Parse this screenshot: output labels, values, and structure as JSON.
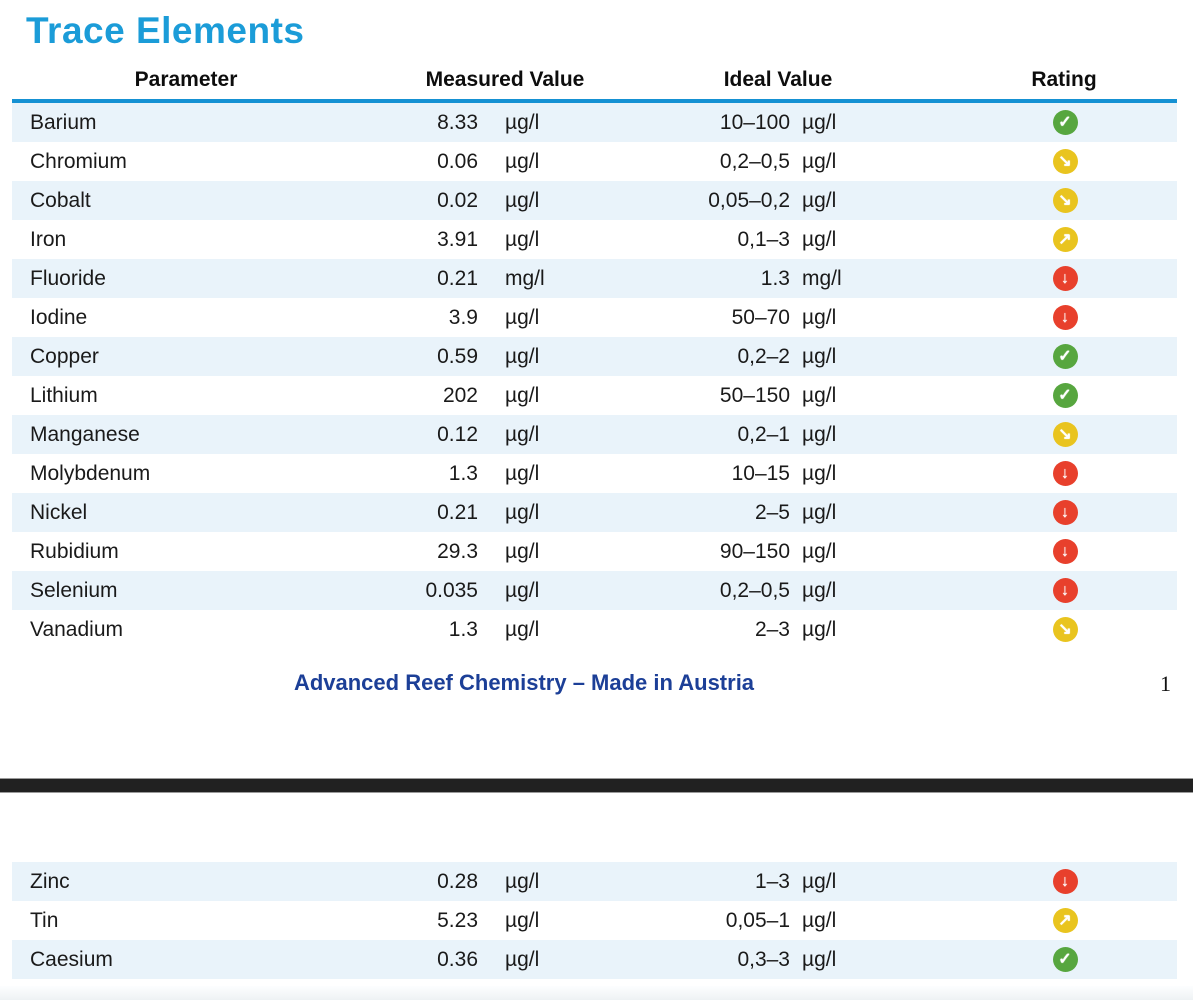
{
  "page": {
    "title": "Trace Elements",
    "footer": {
      "brand": "Advanced Reef Chemistry – Made in Austria",
      "page_number": "1"
    }
  },
  "table": {
    "headers": {
      "parameter": "Parameter",
      "measured": "Measured Value",
      "ideal": "Ideal Value",
      "rating": "Rating"
    },
    "rows_page1": [
      {
        "name": "Barium",
        "measured": "8.33",
        "measured_unit": "µg/l",
        "ideal": "10–100",
        "ideal_unit": "µg/l",
        "rating": "ok"
      },
      {
        "name": "Chromium",
        "measured": "0.06",
        "measured_unit": "µg/l",
        "ideal": "0,2–0,5",
        "ideal_unit": "µg/l",
        "rating": "low"
      },
      {
        "name": "Cobalt",
        "measured": "0.02",
        "measured_unit": "µg/l",
        "ideal": "0,05–0,2",
        "ideal_unit": "µg/l",
        "rating": "low"
      },
      {
        "name": "Iron",
        "measured": "3.91",
        "measured_unit": "µg/l",
        "ideal": "0,1–3",
        "ideal_unit": "µg/l",
        "rating": "high"
      },
      {
        "name": "Fluoride",
        "measured": "0.21",
        "measured_unit": "mg/l",
        "ideal": "1.3",
        "ideal_unit": "mg/l",
        "rating": "verylow"
      },
      {
        "name": "Iodine",
        "measured": "3.9",
        "measured_unit": "µg/l",
        "ideal": "50–70",
        "ideal_unit": "µg/l",
        "rating": "verylow"
      },
      {
        "name": "Copper",
        "measured": "0.59",
        "measured_unit": "µg/l",
        "ideal": "0,2–2",
        "ideal_unit": "µg/l",
        "rating": "ok"
      },
      {
        "name": "Lithium",
        "measured": "202",
        "measured_unit": "µg/l",
        "ideal": "50–150",
        "ideal_unit": "µg/l",
        "rating": "ok"
      },
      {
        "name": "Manganese",
        "measured": "0.12",
        "measured_unit": "µg/l",
        "ideal": "0,2–1",
        "ideal_unit": "µg/l",
        "rating": "low"
      },
      {
        "name": "Molybdenum",
        "measured": "1.3",
        "measured_unit": "µg/l",
        "ideal": "10–15",
        "ideal_unit": "µg/l",
        "rating": "verylow"
      },
      {
        "name": "Nickel",
        "measured": "0.21",
        "measured_unit": "µg/l",
        "ideal": "2–5",
        "ideal_unit": "µg/l",
        "rating": "verylow"
      },
      {
        "name": "Rubidium",
        "measured": "29.3",
        "measured_unit": "µg/l",
        "ideal": "90–150",
        "ideal_unit": "µg/l",
        "rating": "verylow"
      },
      {
        "name": "Selenium",
        "measured": "0.035",
        "measured_unit": "µg/l",
        "ideal": "0,2–0,5",
        "ideal_unit": "µg/l",
        "rating": "verylow"
      },
      {
        "name": "Vanadium",
        "measured": "1.3",
        "measured_unit": "µg/l",
        "ideal": "2–3",
        "ideal_unit": "µg/l",
        "rating": "low"
      }
    ],
    "rows_page2": [
      {
        "name": "Zinc",
        "measured": "0.28",
        "measured_unit": "µg/l",
        "ideal": "1–3",
        "ideal_unit": "µg/l",
        "rating": "verylow"
      },
      {
        "name": "Tin",
        "measured": "5.23",
        "measured_unit": "µg/l",
        "ideal": "0,05–1",
        "ideal_unit": "µg/l",
        "rating": "high"
      },
      {
        "name": "Caesium",
        "measured": "0.36",
        "measured_unit": "µg/l",
        "ideal": "0,3–3",
        "ideal_unit": "µg/l",
        "rating": "ok"
      }
    ]
  },
  "rating_icons": {
    "ok": {
      "name": "check-circle-icon",
      "glyph": "✓",
      "color": "#57a63f"
    },
    "low": {
      "name": "arrow-down-right-icon",
      "glyph": "↘",
      "color": "#e9c41f"
    },
    "high": {
      "name": "arrow-up-right-icon",
      "glyph": "↗",
      "color": "#e9c41f"
    },
    "verylow": {
      "name": "arrow-down-circle-icon",
      "glyph": "↓",
      "color": "#e8402c"
    }
  },
  "colors": {
    "accent_blue": "#1b9cd8",
    "header_rule_blue": "#1591d3",
    "row_stripe_blue": "#e9f3fa",
    "footer_navy": "#1c3f97",
    "rating_green": "#57a63f",
    "rating_yellow": "#e9c41f",
    "rating_red": "#e8402c",
    "page_break_dark": "#212121"
  }
}
